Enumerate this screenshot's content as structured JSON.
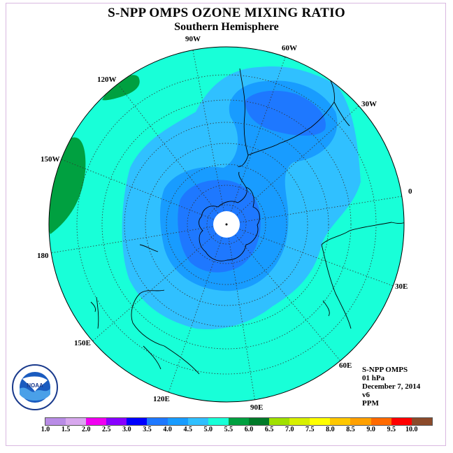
{
  "title": "S-NPP OMPS OZONE MIXING RATIO",
  "subtitle": "Southern Hemisphere",
  "longitude_labels": [
    {
      "id": "lon-90w",
      "text": "90W"
    },
    {
      "id": "lon-60w",
      "text": "60W"
    },
    {
      "id": "lon-30w",
      "text": "30W"
    },
    {
      "id": "lon-0",
      "text": "0"
    },
    {
      "id": "lon-30e",
      "text": "30E"
    },
    {
      "id": "lon-60e",
      "text": "60E"
    },
    {
      "id": "lon-90e",
      "text": "90E"
    },
    {
      "id": "lon-120e",
      "text": "120E"
    },
    {
      "id": "lon-150e",
      "text": "150E"
    },
    {
      "id": "lon-180",
      "text": "180"
    },
    {
      "id": "lon-150w",
      "text": "150W"
    },
    {
      "id": "lon-120w",
      "text": "120W"
    }
  ],
  "info": {
    "instrument": "S-NPP OMPS",
    "pressure_level": "01 hPa",
    "date": "December 7, 2014",
    "version": "v6",
    "units": "PPM"
  },
  "colorbar": {
    "ticks": [
      "1.0",
      "1.5",
      "2.0",
      "2.5",
      "3.0",
      "3.5",
      "4.0",
      "4.5",
      "5.0",
      "5.5",
      "6.0",
      "6.5",
      "7.0",
      "7.5",
      "8.0",
      "8.5",
      "9.0",
      "9.5",
      "10.0"
    ],
    "colors": [
      "#b98ce6",
      "#d8a8ee",
      "#f000f0",
      "#8800ff",
      "#0000ff",
      "#1e78ff",
      "#189cff",
      "#30c0ff",
      "#18ffd8",
      "#00a040",
      "#007a28",
      "#a0e000",
      "#d8f000",
      "#ffff00",
      "#ffc800",
      "#ffa000",
      "#ff6a00",
      "#ff0000",
      "#8b4a2a"
    ]
  },
  "palette": {
    "ocean_level_4_5_5_0": "#18ffd8",
    "level_4_0_4_5": "#30c0ff",
    "level_3_5_4_0": "#189cff",
    "level_3_0_3_5": "#1e78ff",
    "level_5_0_5_5": "#00a040",
    "pole_no_data": "#ffffff"
  }
}
